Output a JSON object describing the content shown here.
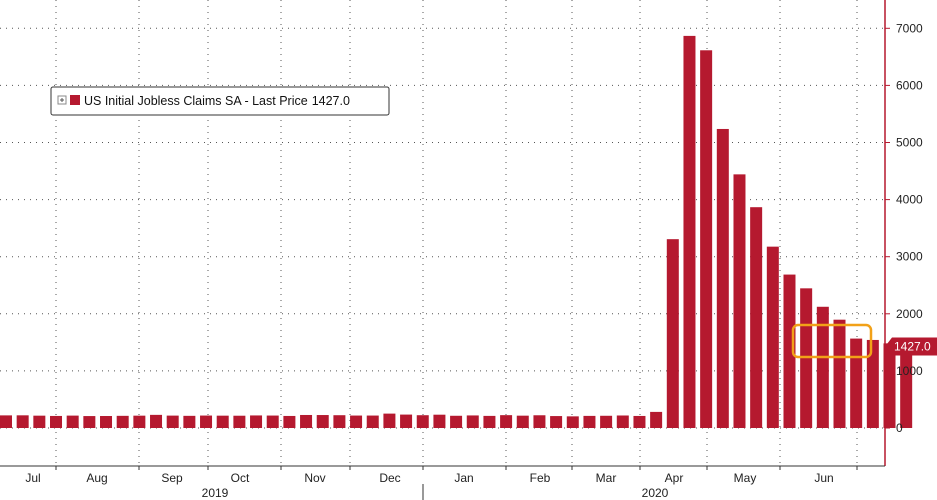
{
  "chart_data": {
    "type": "bar",
    "series": [
      {
        "name": "US Initial Jobless Claims SA",
        "color": "#b5192f",
        "values": [
          221,
          222,
          216,
          211,
          217,
          209,
          210,
          213,
          216,
          230,
          217,
          213,
          218,
          216,
          215,
          220,
          218,
          211,
          228,
          227,
          224,
          218,
          218,
          252,
          235,
          224,
          233,
          214,
          220,
          212,
          225,
          216,
          223,
          209,
          204,
          212,
          214,
          219,
          211,
          282,
          3307,
          6867,
          6615,
          5237,
          4442,
          3867,
          3176,
          2687,
          2446,
          2123,
          1897,
          1566,
          1542,
          1482,
          1427
        ]
      }
    ],
    "legend": {
      "label": "US Initial Jobless Claims SA - Last Price",
      "value": "1427.0",
      "position": "top-left"
    },
    "y_ticks": [
      "0",
      "1000",
      "2000",
      "3000",
      "4000",
      "5000",
      "6000",
      "7000"
    ],
    "ylim": [
      -700,
      7450
    ],
    "y_axis_side": "right",
    "grid": "dotted",
    "last_value_label": "1427.0",
    "months": [
      {
        "label": "Jul"
      },
      {
        "label": "Aug"
      },
      {
        "label": "Sep"
      },
      {
        "label": "Oct"
      },
      {
        "label": "Nov"
      },
      {
        "label": "Dec"
      },
      {
        "label": "Jan"
      },
      {
        "label": "Feb"
      },
      {
        "label": "Mar"
      },
      {
        "label": "Apr"
      },
      {
        "label": "May"
      },
      {
        "label": "Jun"
      }
    ],
    "years": [
      {
        "label": "2019"
      },
      {
        "label": "2020"
      }
    ],
    "highlight": {
      "color": "#f2a118",
      "covers_last_bars": 4
    }
  }
}
